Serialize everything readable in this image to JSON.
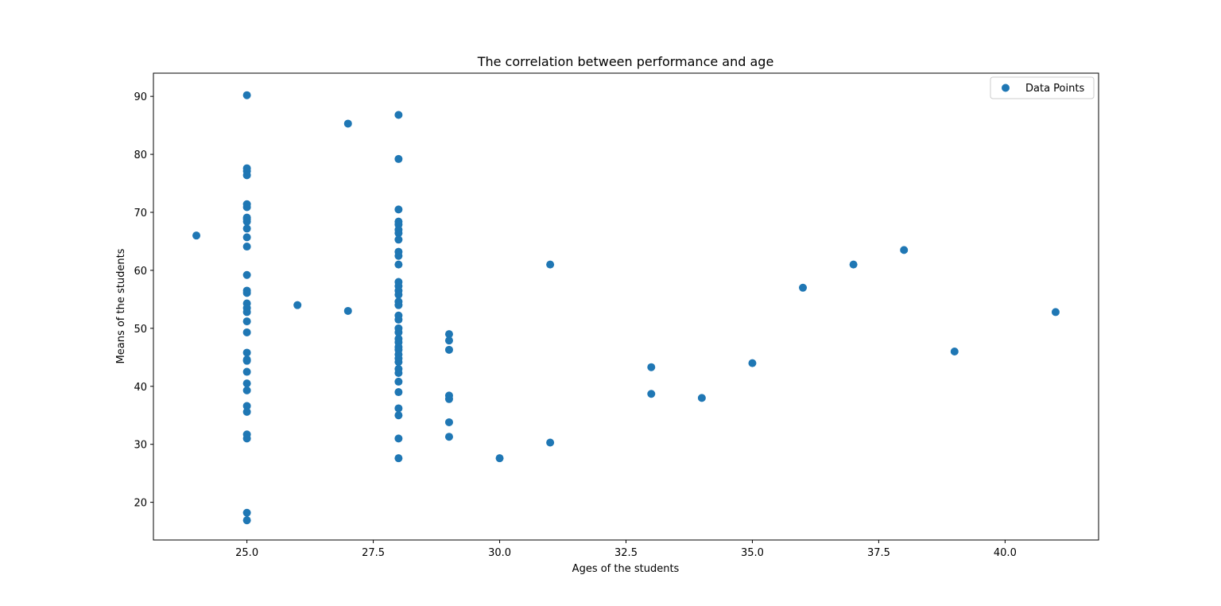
{
  "chart_data": {
    "type": "scatter",
    "title": "The correlation between performance and age",
    "xlabel": "Ages of the students",
    "ylabel": "Means of the students",
    "xlim": [
      23.15,
      41.85
    ],
    "ylim": [
      13.5,
      94.0
    ],
    "xticks": [
      25.0,
      27.5,
      30.0,
      32.5,
      35.0,
      37.5,
      40.0
    ],
    "xtick_labels": [
      "25.0",
      "27.5",
      "30.0",
      "32.5",
      "35.0",
      "37.5",
      "40.0"
    ],
    "yticks": [
      20,
      30,
      40,
      50,
      60,
      70,
      80,
      90
    ],
    "ytick_labels": [
      "20",
      "30",
      "40",
      "50",
      "60",
      "70",
      "80",
      "90"
    ],
    "grid": false,
    "legend": {
      "position": "top-right",
      "entries": [
        "Data Points"
      ]
    },
    "color": "#1f77b4",
    "series": [
      {
        "name": "Data Points",
        "points": [
          [
            24,
            66.0
          ],
          [
            25,
            90.2
          ],
          [
            25,
            77.6
          ],
          [
            25,
            77.1
          ],
          [
            25,
            76.4
          ],
          [
            25,
            71.4
          ],
          [
            25,
            70.9
          ],
          [
            25,
            69.1
          ],
          [
            25,
            68.8
          ],
          [
            25,
            68.4
          ],
          [
            25,
            67.2
          ],
          [
            25,
            65.7
          ],
          [
            25,
            64.1
          ],
          [
            25,
            59.2
          ],
          [
            25,
            56.5
          ],
          [
            25,
            56.1
          ],
          [
            25,
            54.3
          ],
          [
            25,
            53.5
          ],
          [
            25,
            52.8
          ],
          [
            25,
            51.2
          ],
          [
            25,
            49.3
          ],
          [
            25,
            45.8
          ],
          [
            25,
            44.6
          ],
          [
            25,
            44.4
          ],
          [
            25,
            42.5
          ],
          [
            25,
            40.5
          ],
          [
            25,
            39.3
          ],
          [
            25,
            36.6
          ],
          [
            25,
            35.6
          ],
          [
            25,
            31.7
          ],
          [
            25,
            31.0
          ],
          [
            25,
            18.2
          ],
          [
            25,
            16.9
          ],
          [
            26,
            54.0
          ],
          [
            27,
            85.3
          ],
          [
            27,
            53.0
          ],
          [
            28,
            86.8
          ],
          [
            28,
            79.2
          ],
          [
            28,
            70.5
          ],
          [
            28,
            68.4
          ],
          [
            28,
            67.9
          ],
          [
            28,
            67.0
          ],
          [
            28,
            66.4
          ],
          [
            28,
            65.3
          ],
          [
            28,
            63.2
          ],
          [
            28,
            62.5
          ],
          [
            28,
            61.0
          ],
          [
            28,
            58.0
          ],
          [
            28,
            57.3
          ],
          [
            28,
            56.5
          ],
          [
            28,
            55.8
          ],
          [
            28,
            54.6
          ],
          [
            28,
            54.0
          ],
          [
            28,
            52.2
          ],
          [
            28,
            51.5
          ],
          [
            28,
            50.0
          ],
          [
            28,
            49.3
          ],
          [
            28,
            48.2
          ],
          [
            28,
            47.6
          ],
          [
            28,
            46.8
          ],
          [
            28,
            46.3
          ],
          [
            28,
            45.5
          ],
          [
            28,
            44.8
          ],
          [
            28,
            44.2
          ],
          [
            28,
            43.0
          ],
          [
            28,
            42.3
          ],
          [
            28,
            40.8
          ],
          [
            28,
            39.0
          ],
          [
            28,
            36.2
          ],
          [
            28,
            35.0
          ],
          [
            28,
            31.0
          ],
          [
            28,
            27.6
          ],
          [
            29,
            49.0
          ],
          [
            29,
            47.9
          ],
          [
            29,
            46.3
          ],
          [
            29,
            38.4
          ],
          [
            29,
            37.8
          ],
          [
            29,
            33.8
          ],
          [
            29,
            31.3
          ],
          [
            30,
            27.6
          ],
          [
            31,
            61.0
          ],
          [
            31,
            30.3
          ],
          [
            33,
            43.3
          ],
          [
            33,
            38.7
          ],
          [
            34,
            38.0
          ],
          [
            35,
            44.0
          ],
          [
            36,
            57.0
          ],
          [
            37,
            61.0
          ],
          [
            38,
            63.5
          ],
          [
            39,
            46.0
          ],
          [
            41,
            52.8
          ]
        ]
      }
    ]
  }
}
